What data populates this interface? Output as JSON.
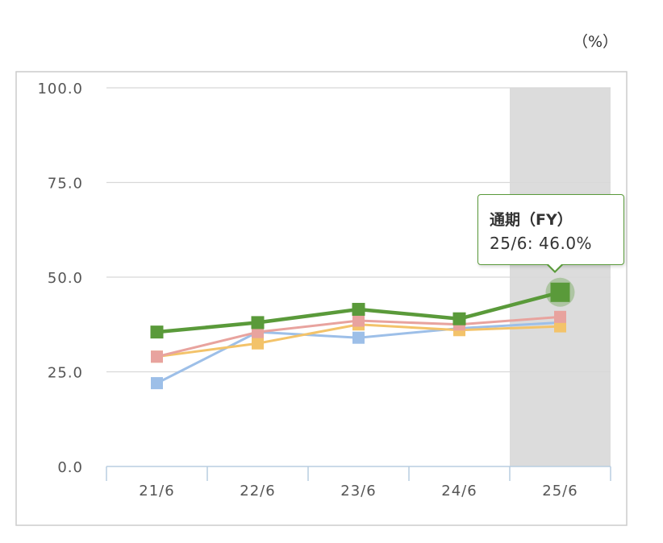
{
  "chart_data": {
    "type": "line",
    "unit_label": "（%）",
    "categories": [
      "21/6",
      "22/6",
      "23/6",
      "24/6",
      "25/6"
    ],
    "ylim": [
      0,
      100
    ],
    "yticks": [
      "0.0",
      "25.0",
      "50.0",
      "75.0",
      "100.0"
    ],
    "ytick_values": [
      0,
      25,
      50,
      75,
      100
    ],
    "grid": true,
    "highlight_category": "25/6",
    "series": [
      {
        "values": [
          22.0,
          35.5,
          34.0,
          36.5,
          38.0
        ],
        "color": "#9dbfe8"
      },
      {
        "values": [
          29.0,
          32.5,
          37.5,
          36.0,
          37.0
        ],
        "color": "#f3c36a"
      },
      {
        "values": [
          29.0,
          35.5,
          38.5,
          37.5,
          39.5
        ],
        "color": "#e8a39e"
      },
      {
        "name": "通期（FY）",
        "values": [
          35.5,
          38.0,
          41.5,
          39.0,
          46.0
        ],
        "color": "#5a9a3a"
      }
    ],
    "tooltip": {
      "title": "通期（FY）",
      "text": "25/6: 46.0%"
    }
  }
}
